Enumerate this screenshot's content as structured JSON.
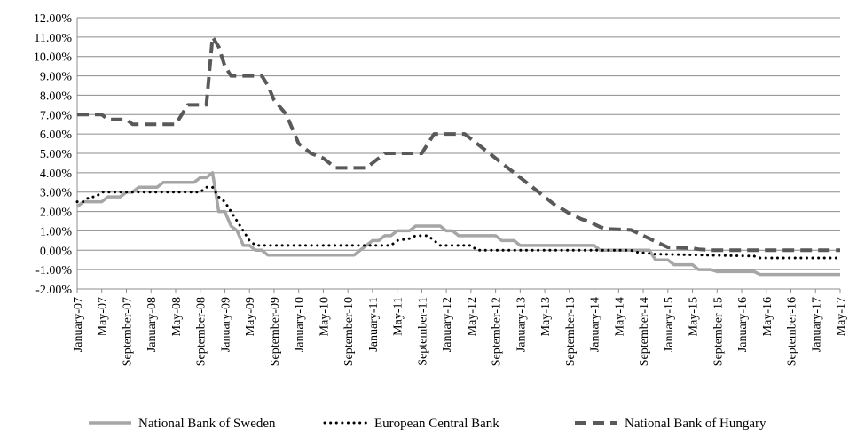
{
  "chart_data": {
    "type": "line",
    "title": "",
    "xlabel": "",
    "ylabel": "",
    "ylim": [
      -2,
      12
    ],
    "y_ticks": [
      "-2.00%",
      "-1.00%",
      "0.00%",
      "1.00%",
      "2.00%",
      "3.00%",
      "4.00%",
      "5.00%",
      "6.00%",
      "7.00%",
      "8.00%",
      "9.00%",
      "10.00%",
      "11.00%",
      "12.00%"
    ],
    "x_tick_labels": [
      "January-07",
      "May-07",
      "September-07",
      "January-08",
      "May-08",
      "September-08",
      "January-09",
      "May-09",
      "September-09",
      "January-10",
      "May-10",
      "September-10",
      "January-11",
      "May-11",
      "September-11",
      "January-12",
      "May-12",
      "September-12",
      "January-13",
      "May-13",
      "September-13",
      "January-14",
      "May-14",
      "September-14",
      "January-15",
      "May-15",
      "September-15",
      "January-16",
      "May-16",
      "September-16",
      "January-17",
      "May-17"
    ],
    "grid": "horizontal",
    "legend_position": "bottom",
    "series": [
      {
        "name": "National Bank of Sweden",
        "color": "#a6a6a6",
        "style": "solid",
        "points": [
          [
            0,
            2.25
          ],
          [
            1,
            2.5
          ],
          [
            4,
            2.5
          ],
          [
            5,
            2.75
          ],
          [
            7,
            2.75
          ],
          [
            8,
            3.0
          ],
          [
            9,
            3.0
          ],
          [
            10,
            3.25
          ],
          [
            13,
            3.25
          ],
          [
            14,
            3.5
          ],
          [
            19,
            3.5
          ],
          [
            20,
            3.75
          ],
          [
            21,
            3.75
          ],
          [
            22,
            4.0
          ],
          [
            23,
            2.0
          ],
          [
            24,
            2.0
          ],
          [
            25,
            1.25
          ],
          [
            26,
            1.0
          ],
          [
            27,
            0.25
          ],
          [
            28,
            0.25
          ],
          [
            29,
            0.0
          ],
          [
            30,
            0.0
          ],
          [
            31,
            -0.25
          ],
          [
            44,
            -0.25
          ],
          [
            45,
            -0.25
          ],
          [
            46,
            0.0
          ],
          [
            47,
            0.25
          ],
          [
            48,
            0.5
          ],
          [
            49,
            0.5
          ],
          [
            50,
            0.75
          ],
          [
            51,
            0.75
          ],
          [
            52,
            1.0
          ],
          [
            54,
            1.0
          ],
          [
            55,
            1.25
          ],
          [
            59,
            1.25
          ],
          [
            60,
            1.0
          ],
          [
            61,
            1.0
          ],
          [
            62,
            0.75
          ],
          [
            68,
            0.75
          ],
          [
            69,
            0.5
          ],
          [
            71,
            0.5
          ],
          [
            72,
            0.25
          ],
          [
            84,
            0.25
          ],
          [
            85,
            0.0
          ],
          [
            93,
            0.0
          ],
          [
            94,
            -0.5
          ],
          [
            96,
            -0.5
          ],
          [
            97,
            -0.75
          ],
          [
            100,
            -0.75
          ],
          [
            101,
            -1.0
          ],
          [
            103,
            -1.0
          ],
          [
            104,
            -1.1
          ],
          [
            110,
            -1.1
          ],
          [
            111,
            -1.25
          ],
          [
            124,
            -1.25
          ]
        ]
      },
      {
        "name": "European Central Bank",
        "color": "#000000",
        "style": "dotted",
        "points": [
          [
            0,
            2.5
          ],
          [
            1,
            2.5
          ],
          [
            2,
            2.75
          ],
          [
            3,
            2.75
          ],
          [
            4,
            3.0
          ],
          [
            5,
            3.0
          ],
          [
            6,
            3.0
          ],
          [
            7,
            3.0
          ],
          [
            8,
            3.0
          ],
          [
            20,
            3.0
          ],
          [
            21,
            3.25
          ],
          [
            22,
            3.25
          ],
          [
            23,
            2.75
          ],
          [
            24,
            2.5
          ],
          [
            25,
            2.0
          ],
          [
            26,
            1.5
          ],
          [
            27,
            1.0
          ],
          [
            28,
            0.5
          ],
          [
            29,
            0.25
          ],
          [
            30,
            0.25
          ],
          [
            50,
            0.25
          ],
          [
            51,
            0.25
          ],
          [
            52,
            0.5
          ],
          [
            54,
            0.6
          ],
          [
            55,
            0.75
          ],
          [
            57,
            0.75
          ],
          [
            58,
            0.5
          ],
          [
            59,
            0.25
          ],
          [
            64,
            0.25
          ],
          [
            65,
            0.0
          ],
          [
            90,
            0.0
          ],
          [
            91,
            -0.1
          ],
          [
            94,
            -0.2
          ],
          [
            110,
            -0.3
          ],
          [
            111,
            -0.4
          ],
          [
            124,
            -0.4
          ]
        ]
      },
      {
        "name": "National Bank of Hungary",
        "color": "#595959",
        "style": "dashed",
        "points": [
          [
            0,
            7.0
          ],
          [
            4,
            7.0
          ],
          [
            5,
            6.75
          ],
          [
            8,
            6.75
          ],
          [
            9,
            6.5
          ],
          [
            15,
            6.5
          ],
          [
            16,
            6.5
          ],
          [
            17,
            7.0
          ],
          [
            18,
            7.5
          ],
          [
            21,
            7.5
          ],
          [
            22,
            11.0
          ],
          [
            23,
            10.5
          ],
          [
            24,
            9.5
          ],
          [
            25,
            9.0
          ],
          [
            30,
            9.0
          ],
          [
            31,
            8.5
          ],
          [
            32,
            7.75
          ],
          [
            34,
            7.0
          ],
          [
            35,
            6.25
          ],
          [
            36,
            5.5
          ],
          [
            37,
            5.25
          ],
          [
            38,
            5.0
          ],
          [
            40,
            4.75
          ],
          [
            41,
            4.5
          ],
          [
            42,
            4.25
          ],
          [
            47,
            4.25
          ],
          [
            48,
            4.5
          ],
          [
            49,
            4.75
          ],
          [
            50,
            5.0
          ],
          [
            56,
            5.0
          ],
          [
            57,
            5.5
          ],
          [
            58,
            6.0
          ],
          [
            63,
            6.0
          ],
          [
            64,
            5.75
          ],
          [
            65,
            5.5
          ],
          [
            66,
            5.25
          ],
          [
            67,
            5.0
          ],
          [
            68,
            4.75
          ],
          [
            69,
            4.5
          ],
          [
            70,
            4.25
          ],
          [
            71,
            4.0
          ],
          [
            72,
            3.75
          ],
          [
            73,
            3.5
          ],
          [
            74,
            3.25
          ],
          [
            75,
            3.0
          ],
          [
            76,
            2.75
          ],
          [
            77,
            2.5
          ],
          [
            78,
            2.25
          ],
          [
            79,
            2.1
          ],
          [
            80,
            1.9
          ],
          [
            81,
            1.75
          ],
          [
            82,
            1.6
          ],
          [
            83,
            1.5
          ],
          [
            84,
            1.35
          ],
          [
            85,
            1.2
          ],
          [
            86,
            1.1
          ],
          [
            90,
            1.05
          ],
          [
            91,
            0.9
          ],
          [
            92,
            0.75
          ],
          [
            93,
            0.6
          ],
          [
            94,
            0.45
          ],
          [
            95,
            0.3
          ],
          [
            96,
            0.15
          ],
          [
            100,
            0.1
          ],
          [
            101,
            0.05
          ],
          [
            103,
            0.0
          ],
          [
            124,
            0.0
          ]
        ]
      }
    ]
  }
}
